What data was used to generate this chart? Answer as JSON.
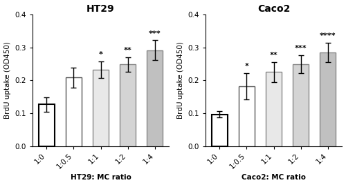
{
  "ht29": {
    "title": "HT29",
    "xlabel": "HT29: MC ratio",
    "ylabel": "BrdU uptake (OD450)",
    "categories": [
      "1:0",
      "1:0.5",
      "1:1",
      "1:2",
      "1:4"
    ],
    "values": [
      0.127,
      0.208,
      0.232,
      0.248,
      0.291
    ],
    "errors": [
      0.022,
      0.03,
      0.025,
      0.022,
      0.03
    ],
    "bar_colors": [
      "#ffffff",
      "#ffffff",
      "#e8e8e8",
      "#d4d4d4",
      "#c0c0c0"
    ],
    "bar_edge_colors": [
      "#000000",
      "#555555",
      "#888888",
      "#888888",
      "#888888"
    ],
    "bar_edge_widths": [
      1.5,
      1.0,
      1.0,
      1.0,
      1.0
    ],
    "significance": [
      "",
      "",
      "*",
      "**",
      "***"
    ],
    "ylim": [
      0,
      0.4
    ],
    "yticks": [
      0.0,
      0.1,
      0.2,
      0.3,
      0.4
    ]
  },
  "caco2": {
    "title": "Caco2",
    "xlabel": "Caco2: MC ratio",
    "ylabel": "BrdU uptake (OD450)",
    "categories": [
      "1:0",
      "1:0.5",
      "1:1",
      "1:2",
      "1:4"
    ],
    "values": [
      0.097,
      0.182,
      0.225,
      0.249,
      0.284
    ],
    "errors": [
      0.01,
      0.04,
      0.03,
      0.028,
      0.03
    ],
    "bar_colors": [
      "#ffffff",
      "#ffffff",
      "#e8e8e8",
      "#d4d4d4",
      "#c0c0c0"
    ],
    "bar_edge_colors": [
      "#000000",
      "#555555",
      "#888888",
      "#888888",
      "#888888"
    ],
    "bar_edge_widths": [
      1.5,
      1.0,
      1.0,
      1.0,
      1.0
    ],
    "significance": [
      "",
      "*",
      "**",
      "***",
      "****"
    ],
    "ylim": [
      0,
      0.4
    ],
    "yticks": [
      0.0,
      0.1,
      0.2,
      0.3,
      0.4
    ]
  },
  "fig_background": "#ffffff",
  "bar_width": 0.6,
  "title_fontsize": 10,
  "label_fontsize": 7.5,
  "tick_fontsize": 7.5,
  "sig_fontsize": 8
}
